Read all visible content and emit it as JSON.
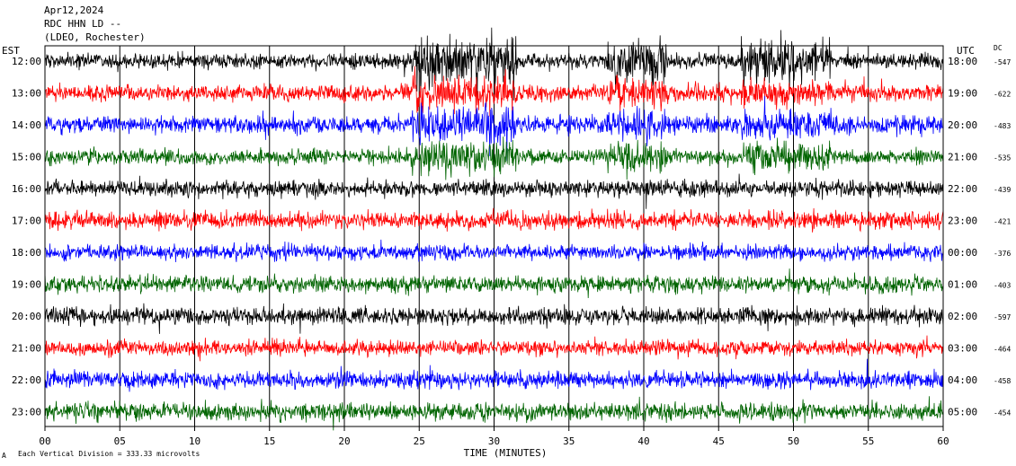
{
  "header": {
    "date": "Apr12,2024",
    "station": "RDC HHN LD --",
    "network": "(LDEO, Rochester)"
  },
  "chart_data": {
    "type": "line",
    "left_timezone": "EST",
    "right_timezone": "UTC",
    "dc_header": "DC",
    "rows": [
      {
        "left": "12:00",
        "right": "18:00",
        "dc": "-547",
        "color": "#000000"
      },
      {
        "left": "13:00",
        "right": "19:00",
        "dc": "-622",
        "color": "#ff0000"
      },
      {
        "left": "14:00",
        "right": "20:00",
        "dc": "-483",
        "color": "#0000ff"
      },
      {
        "left": "15:00",
        "right": "21:00",
        "dc": "-535",
        "color": "#006400"
      },
      {
        "left": "16:00",
        "right": "22:00",
        "dc": "-439",
        "color": "#000000"
      },
      {
        "left": "17:00",
        "right": "23:00",
        "dc": "-421",
        "color": "#ff0000"
      },
      {
        "left": "18:00",
        "right": "00:00",
        "dc": "-376",
        "color": "#0000ff"
      },
      {
        "left": "19:00",
        "right": "01:00",
        "dc": "-403",
        "color": "#006400"
      },
      {
        "left": "20:00",
        "right": "02:00",
        "dc": "-597",
        "color": "#000000"
      },
      {
        "left": "21:00",
        "right": "03:00",
        "dc": "-464",
        "color": "#ff0000"
      },
      {
        "left": "22:00",
        "right": "04:00",
        "dc": "-458",
        "color": "#0000ff"
      },
      {
        "left": "23:00",
        "right": "05:00",
        "dc": "-454",
        "color": "#006400"
      }
    ],
    "x_ticks": [
      "00",
      "05",
      "10",
      "15",
      "20",
      "25",
      "30",
      "35",
      "40",
      "45",
      "50",
      "55",
      "60"
    ],
    "xlim": [
      0,
      60
    ],
    "xlabel": "TIME (MINUTES)",
    "footnote": "Each Vertical Division = 333.33 microvolts",
    "corner_mark": "A",
    "grid": true
  }
}
